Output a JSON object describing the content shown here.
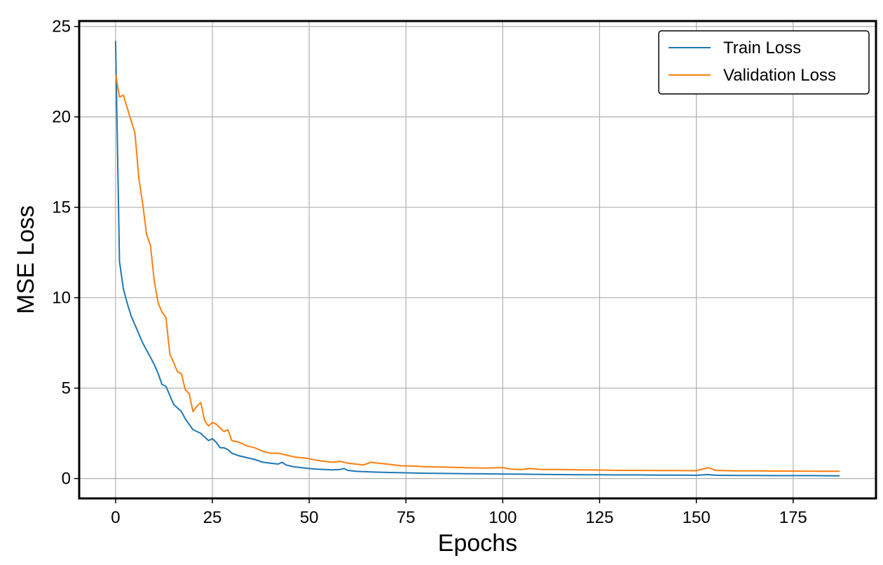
{
  "chart_data": {
    "type": "line",
    "title": "",
    "xlabel": "Epochs",
    "ylabel": "MSE Loss",
    "xlim": [
      -9.4,
      196.4
    ],
    "ylim": [
      -1.1,
      25.3
    ],
    "xticks": [
      0,
      25,
      50,
      75,
      100,
      125,
      150,
      175
    ],
    "yticks": [
      0,
      5,
      10,
      15,
      20,
      25
    ],
    "grid": true,
    "legend_position": "top-right",
    "series": [
      {
        "name": "Train Loss",
        "color": "#1f77b4",
        "x": [
          0,
          1,
          2,
          3,
          4,
          5,
          6,
          7,
          8,
          9,
          10,
          11,
          12,
          13,
          14,
          15,
          16,
          17,
          18,
          19,
          20,
          21,
          22,
          23,
          24,
          25,
          26,
          27,
          28,
          29,
          30,
          32,
          34,
          36,
          38,
          40,
          42,
          43,
          44,
          46,
          48,
          50,
          52,
          54,
          56,
          58,
          59,
          60,
          62,
          64,
          66,
          68,
          70,
          72,
          74,
          76,
          78,
          80,
          85,
          90,
          95,
          100,
          105,
          110,
          115,
          120,
          125,
          130,
          135,
          140,
          145,
          150,
          153,
          155,
          160,
          165,
          170,
          175,
          180,
          185,
          187
        ],
        "y": [
          24.2,
          12.0,
          10.5,
          9.7,
          9.0,
          8.5,
          8.0,
          7.5,
          7.1,
          6.7,
          6.3,
          5.8,
          5.2,
          5.1,
          4.6,
          4.1,
          3.9,
          3.7,
          3.3,
          3.0,
          2.7,
          2.6,
          2.5,
          2.3,
          2.1,
          2.2,
          2.0,
          1.7,
          1.7,
          1.6,
          1.4,
          1.25,
          1.15,
          1.05,
          0.9,
          0.85,
          0.8,
          0.9,
          0.75,
          0.65,
          0.6,
          0.55,
          0.52,
          0.5,
          0.48,
          0.5,
          0.55,
          0.45,
          0.4,
          0.38,
          0.36,
          0.35,
          0.34,
          0.33,
          0.32,
          0.31,
          0.3,
          0.29,
          0.28,
          0.27,
          0.26,
          0.25,
          0.24,
          0.23,
          0.22,
          0.21,
          0.21,
          0.2,
          0.2,
          0.19,
          0.19,
          0.18,
          0.22,
          0.18,
          0.17,
          0.17,
          0.16,
          0.16,
          0.16,
          0.15,
          0.15
        ]
      },
      {
        "name": "Validation Loss",
        "color": "#ff7f0e",
        "x": [
          0,
          1,
          2,
          3,
          4,
          5,
          6,
          7,
          8,
          9,
          10,
          11,
          12,
          13,
          14,
          15,
          16,
          17,
          18,
          19,
          20,
          21,
          22,
          23,
          24,
          25,
          26,
          27,
          28,
          29,
          30,
          32,
          34,
          36,
          38,
          40,
          42,
          44,
          46,
          48,
          50,
          52,
          54,
          56,
          58,
          60,
          62,
          64,
          66,
          68,
          70,
          72,
          74,
          76,
          78,
          80,
          85,
          90,
          95,
          100,
          102,
          105,
          107,
          110,
          115,
          120,
          125,
          130,
          135,
          140,
          145,
          150,
          153,
          155,
          160,
          165,
          170,
          175,
          180,
          185,
          187
        ],
        "y": [
          22.4,
          21.1,
          21.2,
          20.5,
          19.8,
          19.1,
          16.6,
          15.2,
          13.5,
          12.9,
          10.9,
          9.7,
          9.2,
          8.9,
          6.9,
          6.4,
          5.9,
          5.8,
          4.9,
          4.7,
          3.7,
          4.0,
          4.2,
          3.2,
          2.9,
          3.1,
          3.0,
          2.8,
          2.6,
          2.7,
          2.1,
          2.0,
          1.8,
          1.7,
          1.5,
          1.4,
          1.4,
          1.3,
          1.2,
          1.15,
          1.1,
          1.0,
          0.95,
          0.9,
          0.95,
          0.85,
          0.8,
          0.75,
          0.9,
          0.85,
          0.8,
          0.75,
          0.7,
          0.7,
          0.68,
          0.65,
          0.63,
          0.6,
          0.58,
          0.6,
          0.52,
          0.5,
          0.55,
          0.5,
          0.5,
          0.48,
          0.47,
          0.45,
          0.45,
          0.44,
          0.44,
          0.43,
          0.6,
          0.45,
          0.42,
          0.42,
          0.41,
          0.41,
          0.4,
          0.4,
          0.4
        ]
      }
    ]
  }
}
